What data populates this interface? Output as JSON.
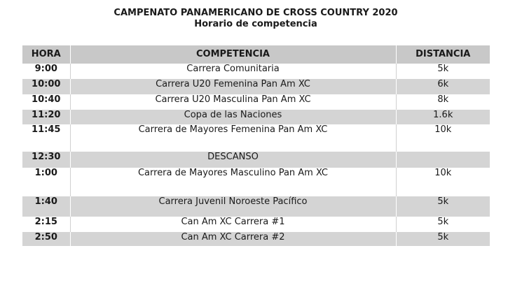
{
  "title": "CAMPENATO PANAMERICANO DE CROSS COUNTRY 2020",
  "subtitle": "Horario de competencia",
  "headers": {
    "hora": "HORA",
    "competencia": "COMPETENCIA",
    "distancia": "DISTANCIA"
  },
  "rows": [
    {
      "hora": "9:00",
      "competencia": "Carrera Comunitaria",
      "distancia": "5k"
    },
    {
      "hora": "10:00",
      "competencia": "Carrera U20 Femenina Pan Am XC",
      "distancia": "6k"
    },
    {
      "hora": "10:40",
      "competencia": "Carrera U20 Masculina Pan Am XC",
      "distancia": "8k"
    },
    {
      "hora": "11:20",
      "competencia": "Copa de las Naciones",
      "distancia": "1.6k"
    },
    {
      "hora": "11:45",
      "competencia": "Carrera de Mayores Femenina Pan Am XC",
      "distancia": "10k"
    },
    {
      "hora": "12:30",
      "competencia": "DESCANSO",
      "distancia": ""
    },
    {
      "hora": "1:00",
      "competencia": "Carrera de Mayores Masculino Pan Am XC",
      "distancia": "10k"
    },
    {
      "hora": "1:40",
      "competencia": "Carrera Juvenil Noroeste Pacífico",
      "distancia": "5k"
    },
    {
      "hora": "2:15",
      "competencia": "Can Am XC Carrera #1",
      "distancia": "5k"
    },
    {
      "hora": "2:50",
      "competencia": "Can Am XC Carrera #2",
      "distancia": "5k"
    }
  ]
}
